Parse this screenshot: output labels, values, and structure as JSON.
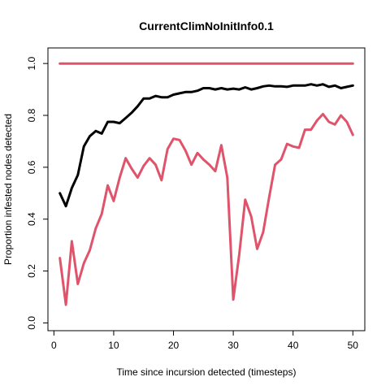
{
  "chart_data": {
    "type": "line",
    "title": "CurrentClimNoInitInfo0.1",
    "xlabel": "Time since incursion detected (timesteps)",
    "ylabel": "Proportion infested nodes detected",
    "xlim": [
      -1,
      52
    ],
    "ylim": [
      -0.03,
      1.06
    ],
    "x_ticks": [
      0,
      10,
      20,
      30,
      40,
      50
    ],
    "y_ticks": [
      0.0,
      0.2,
      0.4,
      0.6,
      0.8,
      1.0
    ],
    "x_tick_labels": [
      "0",
      "10",
      "20",
      "30",
      "40",
      "50"
    ],
    "y_tick_labels": [
      "0.0",
      "0.2",
      "0.4",
      "0.6",
      "0.8",
      "1.0"
    ],
    "grid": false,
    "legend": "none",
    "series": [
      {
        "color": "#DF536B",
        "x": [
          1,
          50
        ],
        "values": [
          1.0,
          1.0
        ]
      },
      {
        "color": "#000000",
        "x": [
          1,
          2,
          3,
          4,
          5,
          6,
          7,
          8,
          9,
          10,
          11,
          12,
          13,
          14,
          15,
          16,
          17,
          18,
          19,
          20,
          21,
          22,
          23,
          24,
          25,
          26,
          27,
          28,
          29,
          30,
          31,
          32,
          33,
          34,
          35,
          36,
          37,
          38,
          39,
          40,
          41,
          42,
          43,
          44,
          45,
          46,
          47,
          48,
          49,
          50
        ],
        "values": [
          0.5,
          0.45,
          0.52,
          0.57,
          0.68,
          0.72,
          0.74,
          0.73,
          0.775,
          0.775,
          0.77,
          0.79,
          0.81,
          0.835,
          0.865,
          0.865,
          0.875,
          0.87,
          0.87,
          0.88,
          0.885,
          0.89,
          0.89,
          0.895,
          0.905,
          0.905,
          0.9,
          0.905,
          0.9,
          0.903,
          0.9,
          0.908,
          0.9,
          0.905,
          0.912,
          0.915,
          0.912,
          0.912,
          0.91,
          0.915,
          0.915,
          0.915,
          0.92,
          0.915,
          0.92,
          0.91,
          0.915,
          0.905,
          0.91,
          0.915
        ]
      },
      {
        "color": "#DF536B",
        "x": [
          1,
          2,
          3,
          4,
          5,
          6,
          7,
          8,
          9,
          10,
          11,
          12,
          13,
          14,
          15,
          16,
          17,
          18,
          19,
          20,
          21,
          22,
          23,
          24,
          25,
          26,
          27,
          28,
          29,
          30,
          31,
          32,
          33,
          34,
          35,
          36,
          37,
          38,
          39,
          40,
          41,
          42,
          43,
          44,
          45,
          46,
          47,
          48,
          49,
          50
        ],
        "values": [
          0.25,
          0.07,
          0.315,
          0.15,
          0.23,
          0.28,
          0.365,
          0.42,
          0.53,
          0.47,
          0.56,
          0.635,
          0.595,
          0.56,
          0.605,
          0.635,
          0.61,
          0.55,
          0.67,
          0.71,
          0.705,
          0.665,
          0.61,
          0.655,
          0.63,
          0.61,
          0.585,
          0.685,
          0.56,
          0.09,
          0.265,
          0.475,
          0.41,
          0.285,
          0.35,
          0.485,
          0.61,
          0.63,
          0.69,
          0.68,
          0.675,
          0.745,
          0.745,
          0.78,
          0.805,
          0.775,
          0.765,
          0.8,
          0.775,
          0.725
        ]
      }
    ]
  }
}
